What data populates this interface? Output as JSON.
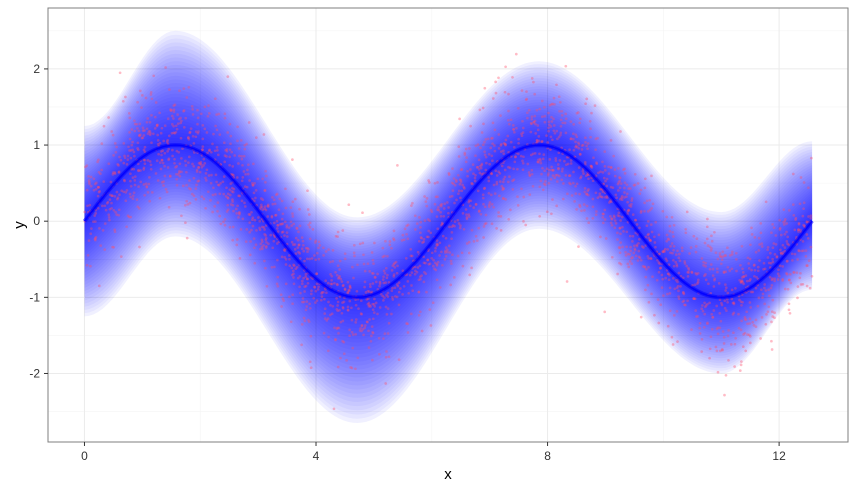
{
  "chart_data": {
    "type": "scatter",
    "title": "",
    "xlabel": "x",
    "ylabel": "y",
    "xlim": [
      -0.63,
      13.19
    ],
    "ylim": [
      -2.9,
      2.8
    ],
    "x_ticks": [
      0,
      4,
      8,
      12
    ],
    "y_ticks": [
      -2,
      -1,
      0,
      1,
      2
    ],
    "x_tick_labels": [
      "0",
      "4",
      "8",
      "12"
    ],
    "y_tick_labels": [
      "-2",
      "-1",
      "0",
      "1",
      "2"
    ],
    "grid": true,
    "legend": "none",
    "series": [
      {
        "type": "points",
        "description_color": "red",
        "color": "#ff4d6a",
        "x_range": [
          0,
          12.57
        ],
        "count_approx": 5000,
        "relationship": "y ≈ sin(x) + noise, sd ≈ 0.4"
      },
      {
        "type": "ribbon",
        "color": "#0000ff",
        "x_range": [
          0,
          12.57
        ],
        "center": "y = sin(x)",
        "outer_band": [
          {
            "x": 0,
            "lower": -1.25,
            "upper": 1.25
          },
          {
            "x": 1.57,
            "lower": -0.2,
            "upper": 2.5
          },
          {
            "x": 4.71,
            "lower": -2.65,
            "upper": 0.05
          },
          {
            "x": 7.85,
            "lower": -0.1,
            "upper": 2.1
          },
          {
            "x": 11.0,
            "lower": -2.0,
            "upper": 0.12
          },
          {
            "x": 12.57,
            "lower": -0.9,
            "upper": 1.05
          }
        ]
      }
    ]
  },
  "colors": {
    "background": "#ffffff",
    "panel_border": "#7f7f7f",
    "grid_major": "#ebebeb",
    "grid_minor": "#f4f4f4",
    "points": "#ff4d6a",
    "ribbon": "#0000ff"
  }
}
